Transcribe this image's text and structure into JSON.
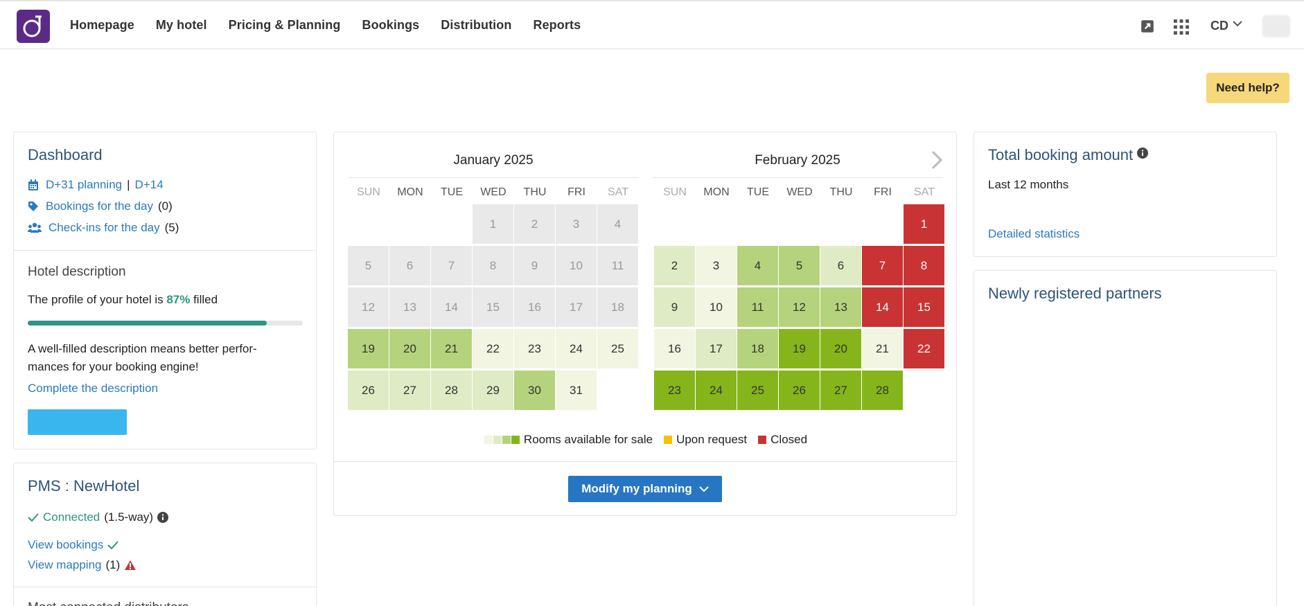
{
  "nav": {
    "items": [
      "Homepage",
      "My hotel",
      "Pricing & Planning",
      "Bookings",
      "Distribution",
      "Reports"
    ],
    "user_initials": "CD"
  },
  "help": {
    "label": "Need help?"
  },
  "dashboard": {
    "title": "Dashboard",
    "planning_link": "D+31 planning",
    "separator": "|",
    "d14_link": "D+14",
    "bookings_link": "Bookings for the day",
    "bookings_count": "(0)",
    "checkins_link": "Check-ins for the day",
    "checkins_count": "(5)",
    "hotel_description_title": "Hotel description",
    "profile_text_before": "The profile of your hotel is ",
    "profile_percent": "87%",
    "profile_text_after": " filled",
    "profile_progress": 0.87,
    "tip_line1": "A well-filled description means better perfor-",
    "tip_line2": "mances for your booking engine!",
    "complete_link": "Complete the description"
  },
  "pms": {
    "title": "PMS : NewHotel",
    "connected": "Connected",
    "mode": "(1.5-way)",
    "view_bookings": "View bookings",
    "view_mapping": "View mapping",
    "mapping_count": "(1)",
    "cut_text": "Most connected distributors"
  },
  "calendar": {
    "weekdays": [
      "SUN",
      "MON",
      "TUE",
      "WED",
      "THU",
      "FRI",
      "SAT"
    ],
    "months": [
      {
        "title": "January 2025",
        "start_weekday": 3,
        "days": [
          "past",
          "past",
          "past",
          "past",
          "past",
          "past",
          "past",
          "past",
          "past",
          "past",
          "past",
          "past",
          "past",
          "past",
          "past",
          "past",
          "past",
          "past",
          "g3",
          "g3",
          "g3",
          "g1",
          "g1",
          "g1",
          "g1",
          "g2",
          "g2",
          "g2",
          "g2",
          "g3",
          "g1"
        ]
      },
      {
        "title": "February 2025",
        "start_weekday": 6,
        "days": [
          "closed",
          "g2",
          "g1",
          "g3",
          "g3",
          "g2",
          "closed",
          "closed",
          "g2",
          "g1",
          "g3",
          "g3",
          "g3",
          "closed",
          "closed",
          "g1",
          "g2",
          "g3",
          "g4",
          "g4",
          "g1",
          "closed",
          "g4",
          "g4",
          "g4",
          "g4",
          "g4",
          "g4"
        ]
      }
    ],
    "colors": {
      "past": "#e9e9e9",
      "g1": "#f1f5e1",
      "g2": "#dfebc4",
      "g3": "#b5d37c",
      "g4": "#85b51a",
      "request": "#f6c200",
      "closed": "#c93333"
    },
    "legend": {
      "available": "Rooms available for sale",
      "request": "Upon request",
      "closed": "Closed"
    },
    "modify_label": "Modify my planning"
  },
  "total_booking": {
    "title": "Total booking amount",
    "period": "Last 12 months",
    "stats_link": "Detailed statistics"
  },
  "partners": {
    "title": "Newly registered partners"
  }
}
